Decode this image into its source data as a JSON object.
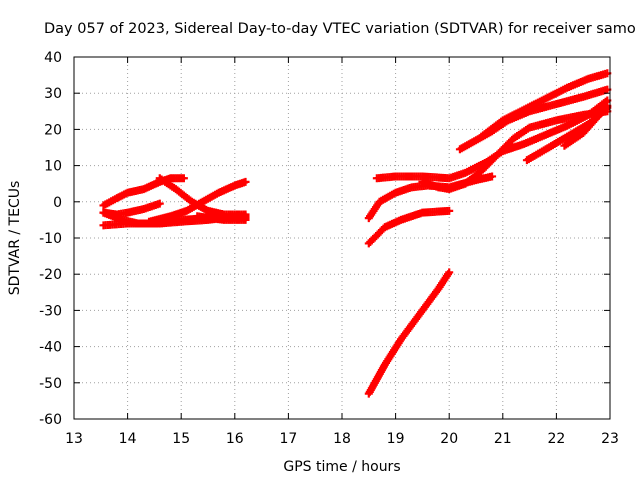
{
  "chart_data": {
    "type": "scatter",
    "title": "Day 057 of 2023, Sidereal Day-to-day VTEC variation (SDTVAR) for receiver samo",
    "xlabel": "GPS time / hours",
    "ylabel": "SDTVAR / TECUs",
    "xlim": [
      13,
      23
    ],
    "ylim": [
      -60,
      40
    ],
    "xticks": [
      13,
      14,
      15,
      16,
      17,
      18,
      19,
      20,
      21,
      22,
      23
    ],
    "yticks": [
      -60,
      -50,
      -40,
      -30,
      -20,
      -10,
      0,
      10,
      20,
      30,
      40
    ],
    "grid": true,
    "legend": "none",
    "series": [
      {
        "values": [
          [
            13.55,
            -1.0
          ],
          [
            13.8,
            1.0
          ],
          [
            14.0,
            2.5
          ],
          [
            14.3,
            3.5
          ],
          [
            14.6,
            5.5
          ],
          [
            14.8,
            6.5
          ],
          [
            15.05,
            6.5
          ]
        ]
      },
      {
        "values": [
          [
            13.55,
            -3.0
          ],
          [
            13.8,
            -3.5
          ],
          [
            14.0,
            -3.0
          ],
          [
            14.3,
            -2.0
          ],
          [
            14.6,
            -0.5
          ]
        ]
      },
      {
        "values": [
          [
            13.55,
            -3.0
          ],
          [
            13.9,
            -5.0
          ],
          [
            14.2,
            -6.0
          ],
          [
            14.6,
            -6.0
          ],
          [
            15.0,
            -5.5
          ],
          [
            15.5,
            -5.0
          ],
          [
            16.0,
            -4.0
          ],
          [
            16.2,
            -4.0
          ]
        ]
      },
      {
        "values": [
          [
            13.55,
            -6.5
          ],
          [
            14.0,
            -6.0
          ],
          [
            14.5,
            -6.0
          ],
          [
            15.0,
            -5.0
          ],
          [
            15.5,
            -4.5
          ],
          [
            16.0,
            -4.5
          ],
          [
            16.2,
            -4.5
          ]
        ]
      },
      {
        "values": [
          [
            14.6,
            6.5
          ],
          [
            14.9,
            3.5
          ],
          [
            15.2,
            0.0
          ],
          [
            15.5,
            -2.5
          ],
          [
            15.8,
            -3.5
          ],
          [
            16.2,
            -3.5
          ]
        ]
      },
      {
        "values": [
          [
            14.4,
            -5.5
          ],
          [
            14.8,
            -4.0
          ],
          [
            15.1,
            -2.5
          ],
          [
            15.4,
            0.0
          ],
          [
            15.7,
            2.5
          ],
          [
            16.0,
            4.5
          ],
          [
            16.2,
            5.5
          ]
        ]
      },
      {
        "values": [
          [
            15.3,
            -4.0
          ],
          [
            15.8,
            -5.0
          ],
          [
            16.2,
            -5.0
          ]
        ]
      },
      {
        "values": [
          [
            18.5,
            -53.0
          ],
          [
            18.8,
            -45.0
          ],
          [
            19.1,
            -38.0
          ],
          [
            19.5,
            -30.0
          ],
          [
            19.8,
            -24.0
          ],
          [
            20.0,
            -19.5
          ]
        ]
      },
      {
        "values": [
          [
            18.5,
            -11.5
          ],
          [
            18.8,
            -7.0
          ],
          [
            19.1,
            -5.0
          ],
          [
            19.5,
            -3.0
          ],
          [
            20.0,
            -2.5
          ]
        ]
      },
      {
        "values": [
          [
            18.5,
            -4.5
          ],
          [
            18.7,
            0.0
          ],
          [
            19.0,
            2.5
          ],
          [
            19.3,
            4.0
          ],
          [
            19.6,
            4.5
          ],
          [
            20.0,
            4.0
          ],
          [
            20.5,
            6.0
          ],
          [
            20.8,
            7.0
          ]
        ]
      },
      {
        "values": [
          [
            18.65,
            6.5
          ],
          [
            19.0,
            7.0
          ],
          [
            19.5,
            7.0
          ],
          [
            20.0,
            6.5
          ],
          [
            20.3,
            8.0
          ],
          [
            20.7,
            11.0
          ],
          [
            21.0,
            14.0
          ],
          [
            21.4,
            16.0
          ],
          [
            21.8,
            18.5
          ],
          [
            22.2,
            21.0
          ],
          [
            22.6,
            24.0
          ],
          [
            22.95,
            28.0
          ]
        ]
      },
      {
        "values": [
          [
            19.5,
            5.5
          ],
          [
            19.8,
            4.0
          ],
          [
            20.0,
            3.5
          ],
          [
            20.3,
            5.0
          ],
          [
            20.6,
            8.5
          ],
          [
            20.9,
            13.0
          ],
          [
            21.2,
            17.5
          ],
          [
            21.5,
            20.5
          ],
          [
            22.0,
            22.5
          ],
          [
            22.5,
            24.0
          ],
          [
            22.95,
            25.0
          ]
        ]
      },
      {
        "values": [
          [
            20.2,
            14.5
          ],
          [
            20.5,
            17.0
          ],
          [
            20.8,
            19.5
          ],
          [
            21.1,
            22.5
          ],
          [
            21.5,
            25.0
          ],
          [
            22.0,
            27.0
          ],
          [
            22.5,
            29.0
          ],
          [
            22.95,
            31.0
          ]
        ]
      },
      {
        "values": [
          [
            20.6,
            18.0
          ],
          [
            21.0,
            22.5
          ],
          [
            21.4,
            25.5
          ],
          [
            21.8,
            28.5
          ],
          [
            22.2,
            31.5
          ],
          [
            22.6,
            34.0
          ],
          [
            22.95,
            35.5
          ]
        ]
      },
      {
        "values": [
          [
            21.45,
            11.5
          ],
          [
            21.8,
            14.5
          ],
          [
            22.2,
            18.0
          ],
          [
            22.6,
            21.5
          ],
          [
            22.95,
            26.0
          ]
        ]
      },
      {
        "values": [
          [
            22.15,
            15.5
          ],
          [
            22.5,
            19.0
          ],
          [
            22.95,
            26.5
          ]
        ]
      }
    ]
  },
  "colors": {
    "series": "#ff0000",
    "grid": "#a0a0a0",
    "axis": "#000000"
  }
}
